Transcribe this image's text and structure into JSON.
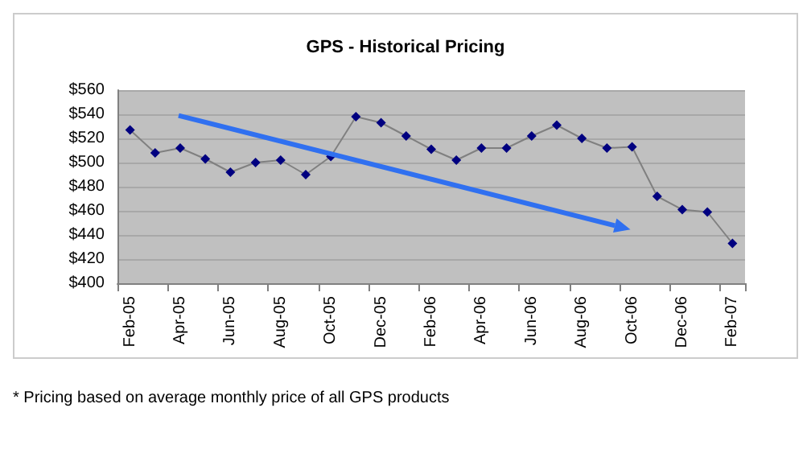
{
  "chart_data": {
    "type": "line",
    "title": "GPS - Historical Pricing",
    "categories": [
      "Feb-05",
      null,
      "Apr-05",
      null,
      "Jun-05",
      null,
      "Aug-05",
      null,
      "Oct-05",
      null,
      "Dec-05",
      null,
      "Feb-06",
      null,
      "Apr-06",
      null,
      "Jun-06",
      null,
      "Aug-06",
      null,
      "Oct-06",
      null,
      "Dec-06",
      null,
      "Feb-07"
    ],
    "series": [
      {
        "color": "#000080",
        "values": [
          527,
          508,
          512,
          503,
          492,
          500,
          502,
          490,
          505,
          538,
          533,
          522,
          511,
          502,
          512,
          512,
          522,
          531,
          520,
          512,
          513,
          472,
          461,
          459,
          433
        ]
      }
    ],
    "ylim": [
      400,
      560
    ],
    "yticks": [
      {
        "value": 400,
        "label": "$400"
      },
      {
        "value": 420,
        "label": "$420"
      },
      {
        "value": 440,
        "label": "$440"
      },
      {
        "value": 460,
        "label": "$460"
      },
      {
        "value": 480,
        "label": "$480"
      },
      {
        "value": 500,
        "label": "$500"
      },
      {
        "value": 520,
        "label": "$520"
      },
      {
        "value": 540,
        "label": "$540"
      },
      {
        "value": 560,
        "label": "$560"
      }
    ],
    "grid": "y",
    "marker": "diamond",
    "annotations": [
      "* Pricing based on average monthly price of all GPS products"
    ]
  }
}
